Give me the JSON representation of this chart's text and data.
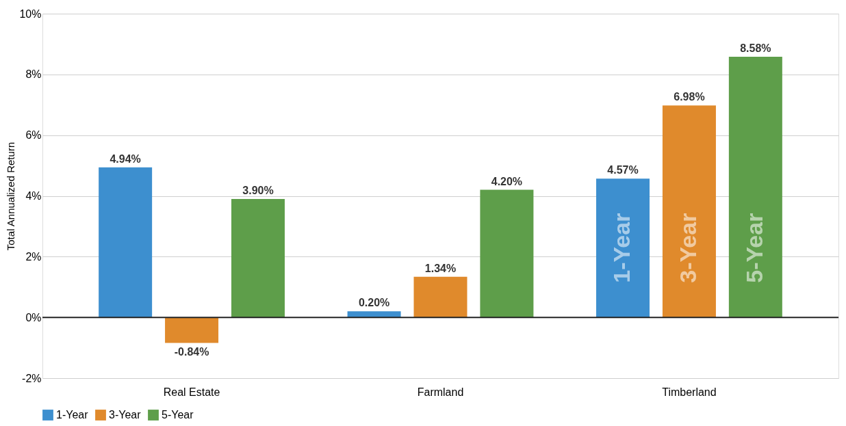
{
  "chart_data": {
    "type": "bar",
    "ylabel": "Total Annualized Return",
    "categories": [
      "Real Estate",
      "Farmland",
      "Timberland"
    ],
    "series": [
      {
        "name": "1-Year",
        "color": "#3d8fcf",
        "values": [
          4.94,
          0.2,
          4.57
        ],
        "value_labels": [
          "4.94%",
          "0.20%",
          "4.57%"
        ]
      },
      {
        "name": "3-Year",
        "color": "#e08a2c",
        "values": [
          -0.84,
          1.34,
          6.98
        ],
        "value_labels": [
          "-0.84%",
          "1.34%",
          "6.98%"
        ]
      },
      {
        "name": "5-Year",
        "color": "#5e9e4a",
        "values": [
          3.9,
          4.2,
          8.58
        ],
        "value_labels": [
          "3.90%",
          "4.20%",
          "8.58%"
        ]
      }
    ],
    "ylim": [
      -2,
      10
    ],
    "yticks": [
      {
        "value": -2,
        "label": "-2%"
      },
      {
        "value": 0,
        "label": "0%"
      },
      {
        "value": 2,
        "label": "2%"
      },
      {
        "value": 4,
        "label": "4%"
      },
      {
        "value": 6,
        "label": "6%"
      },
      {
        "value": 8,
        "label": "8%"
      },
      {
        "value": 10,
        "label": "10%"
      }
    ],
    "ref_lines": [
      {
        "axis": "y",
        "value": 0,
        "color": "#222222"
      }
    ],
    "annotations": [
      "1-Year",
      "3-Year",
      "5-Year"
    ],
    "grid": "y",
    "legend": "bottom left"
  }
}
